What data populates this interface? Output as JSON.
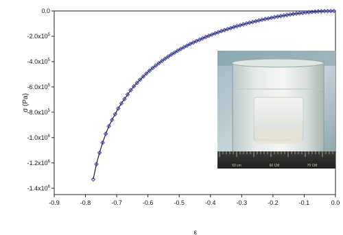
{
  "chart_data": {
    "type": "scatter",
    "title": "",
    "xlabel": "ε",
    "ylabel": "σ (Pa)",
    "xlim": [
      -0.9,
      0.0
    ],
    "ylim": [
      -1450000.0,
      0.0
    ],
    "x_ticks": [
      {
        "value": -0.9,
        "label": "-0.9"
      },
      {
        "value": -0.8,
        "label": "-0.8"
      },
      {
        "value": -0.7,
        "label": "-0.7"
      },
      {
        "value": -0.6,
        "label": "-0.6"
      },
      {
        "value": -0.5,
        "label": "-0.5"
      },
      {
        "value": -0.4,
        "label": "-0.4"
      },
      {
        "value": -0.3,
        "label": "-0.3"
      },
      {
        "value": -0.2,
        "label": "-0.2"
      },
      {
        "value": -0.1,
        "label": "-0.1"
      },
      {
        "value": 0.0,
        "label": "0.0"
      }
    ],
    "y_ticks": [
      {
        "value": 0,
        "label": "0.0",
        "exp": ""
      },
      {
        "value": -200000,
        "label": "-2.0x10",
        "exp": "5"
      },
      {
        "value": -400000,
        "label": "-4.0x10",
        "exp": "5"
      },
      {
        "value": -600000,
        "label": "-6.0x10",
        "exp": "5"
      },
      {
        "value": -800000,
        "label": "-8.0x10",
        "exp": "5"
      },
      {
        "value": -1000000,
        "label": "-1.0x10",
        "exp": "6"
      },
      {
        "value": -1200000,
        "label": "-1.2x10",
        "exp": "6"
      },
      {
        "value": -1400000,
        "label": "-1.4x10",
        "exp": "6"
      }
    ],
    "grid": false,
    "legend": "none",
    "marker_color": "#3b3bb0",
    "line_color": "#1a1a1a",
    "series": [
      {
        "marker": "diamond-open",
        "x": [
          -0.775,
          -0.765,
          -0.755,
          -0.745,
          -0.735,
          -0.725,
          -0.715,
          -0.705,
          -0.695,
          -0.685,
          -0.675,
          -0.665,
          -0.655,
          -0.645,
          -0.635,
          -0.625,
          -0.615,
          -0.605,
          -0.595,
          -0.585,
          -0.575,
          -0.565,
          -0.555,
          -0.545,
          -0.535,
          -0.525,
          -0.515,
          -0.505,
          -0.495,
          -0.485,
          -0.475,
          -0.465,
          -0.455,
          -0.445,
          -0.435,
          -0.425,
          -0.415,
          -0.405,
          -0.395,
          -0.385,
          -0.375,
          -0.365,
          -0.355,
          -0.345,
          -0.335,
          -0.325,
          -0.315,
          -0.305,
          -0.295,
          -0.285,
          -0.275,
          -0.265,
          -0.255,
          -0.245,
          -0.235,
          -0.225,
          -0.215,
          -0.205,
          -0.195,
          -0.185,
          -0.175,
          -0.165,
          -0.155,
          -0.145,
          -0.135,
          -0.125,
          -0.115,
          -0.105,
          -0.095,
          -0.085,
          -0.075,
          -0.065,
          -0.055,
          -0.045,
          -0.035,
          -0.025,
          -0.015,
          -0.005
        ],
        "y": [
          -1330000,
          -1210000,
          -1120000,
          -1040000,
          -970000,
          -910000,
          -860000,
          -815000,
          -770000,
          -730000,
          -695000,
          -660000,
          -625000,
          -595000,
          -568000,
          -542000,
          -518000,
          -494000,
          -472000,
          -451000,
          -431000,
          -412000,
          -394000,
          -377000,
          -360000,
          -344000,
          -329000,
          -314000,
          -300000,
          -287000,
          -274000,
          -261000,
          -249000,
          -238000,
          -227000,
          -216000,
          -206000,
          -196000,
          -186000,
          -177000,
          -168000,
          -159000,
          -151000,
          -143000,
          -135000,
          -127000,
          -120000,
          -113000,
          -106000,
          -99000,
          -93000,
          -87000,
          -81000,
          -75000,
          -69000,
          -64000,
          -59000,
          -54000,
          -49000,
          -44000,
          -40000,
          -36000,
          -32000,
          -28000,
          -24000,
          -21000,
          -18000,
          -15000,
          -12000,
          -9500,
          -7500,
          -5500,
          -4000,
          -2800,
          -1800,
          -1000,
          -400,
          -100
        ]
      }
    ],
    "inset": {
      "type": "photo",
      "description_icon": "beaker-photo",
      "ruler_labels": [
        "50 cm",
        "60 CM",
        "70 CM"
      ]
    }
  }
}
